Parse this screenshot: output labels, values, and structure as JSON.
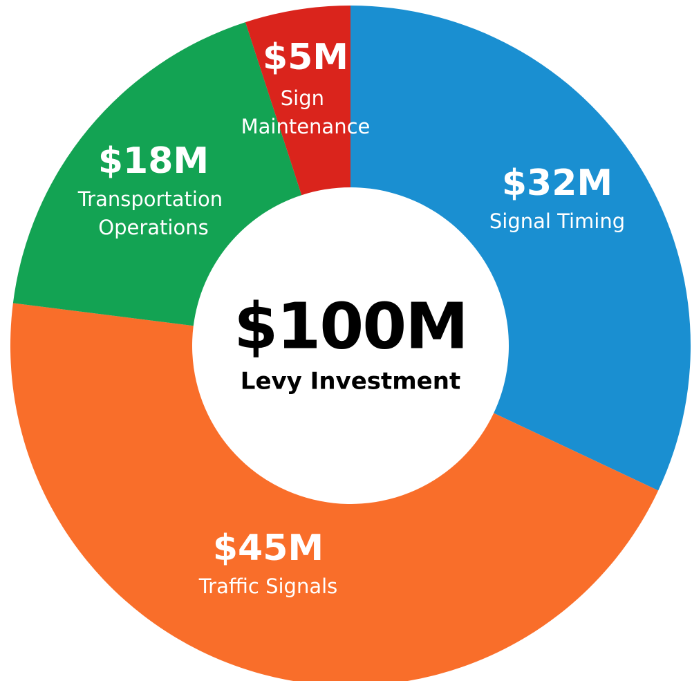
{
  "chart_data": {
    "type": "donut",
    "center_label": "$100M",
    "title": "Levy Investment",
    "categories": [
      "Signal Timing",
      "Traffic Signals",
      "Transportation Operations",
      "Sign Maintenance"
    ],
    "values": [
      32,
      45,
      18,
      5
    ],
    "value_labels": [
      "$32M",
      "$45M",
      "$18M",
      "$5M"
    ],
    "colors": [
      "#1a8fd1",
      "#f96e2a",
      "#13a353",
      "#da241c"
    ]
  }
}
